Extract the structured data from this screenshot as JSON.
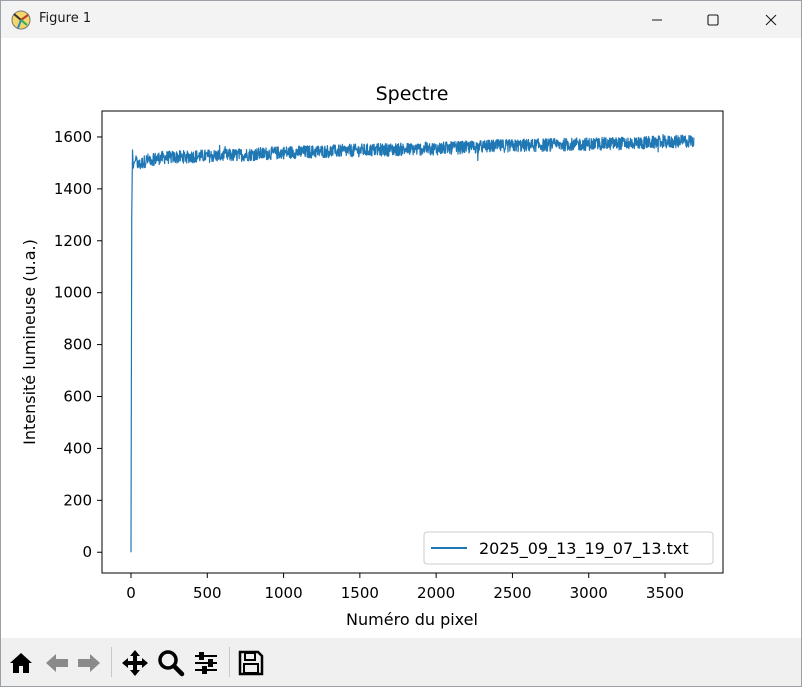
{
  "window": {
    "title": "Figure 1",
    "controls": [
      "minimize",
      "maximize",
      "close"
    ]
  },
  "toolbar": {
    "buttons": [
      {
        "name": "home",
        "icon": "home-icon"
      },
      {
        "name": "back",
        "icon": "back-arrow-icon"
      },
      {
        "name": "forward",
        "icon": "forward-arrow-icon"
      },
      {
        "name": "pan",
        "icon": "move-icon"
      },
      {
        "name": "zoom",
        "icon": "magnifier-icon"
      },
      {
        "name": "configure-subplots",
        "icon": "sliders-icon"
      },
      {
        "name": "save",
        "icon": "floppy-disk-icon"
      }
    ]
  },
  "chart_data": {
    "type": "line",
    "title": "Spectre",
    "xlabel": "Numéro du pixel",
    "ylabel": "Intensité lumineuse (u.a.)",
    "xlim": [
      -190,
      3880
    ],
    "ylim": [
      -80,
      1700
    ],
    "xticks": [
      0,
      500,
      1000,
      1500,
      2000,
      2500,
      3000,
      3500
    ],
    "yticks": [
      0,
      200,
      400,
      600,
      800,
      1000,
      1200,
      1400,
      1600
    ],
    "grid": false,
    "legend_position": "lower right",
    "line_color": "#1f77b4",
    "series": [
      {
        "name": "2025_09_13_19_07_13.txt",
        "x": [
          0,
          5,
          10,
          15,
          20,
          30,
          50,
          100,
          200,
          400,
          700,
          1000,
          1300,
          1600,
          2000,
          2400,
          2800,
          3200,
          3500,
          3690
        ],
        "y": [
          0,
          1300,
          1550,
          1480,
          1500,
          1510,
          1490,
          1510,
          1520,
          1525,
          1530,
          1540,
          1545,
          1550,
          1555,
          1565,
          1570,
          1575,
          1580,
          1585
        ],
        "noise_amplitude": 25
      }
    ]
  }
}
